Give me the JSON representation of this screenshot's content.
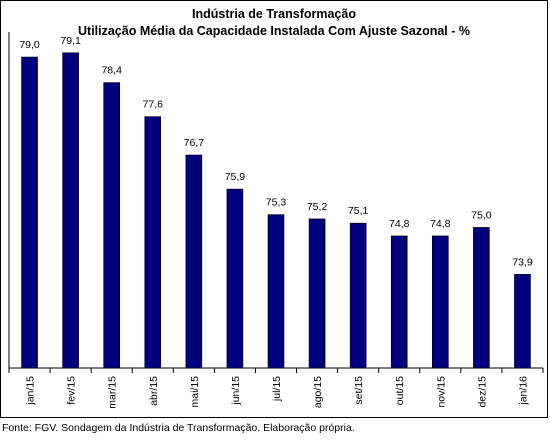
{
  "chart_data": {
    "type": "bar",
    "title": "Indústria de Transformação",
    "subtitle": "Utilização Média da Capacidade Instalada Com Ajuste Sazonal - %",
    "categories": [
      "jan/15",
      "fev/15",
      "mar/15",
      "abr/15",
      "mai/15",
      "jun/15",
      "jul/15",
      "ago/15",
      "set/15",
      "out/15",
      "nov/15",
      "dez/15",
      "jan/16"
    ],
    "values": [
      79.0,
      79.1,
      78.4,
      77.6,
      76.7,
      75.9,
      75.3,
      75.2,
      75.1,
      74.8,
      74.8,
      75.0,
      73.9
    ],
    "value_labels": [
      "79,0",
      "79,1",
      "78,4",
      "77,6",
      "76,7",
      "75,9",
      "75,3",
      "75,2",
      "75,1",
      "74,8",
      "74,8",
      "75,0",
      "73,9"
    ],
    "ylim": [
      71.7,
      79.4
    ],
    "grid": false,
    "bar_color": "#00007f",
    "xlabel": "",
    "ylabel": ""
  },
  "source_note": "Fonte: FGV. Sondagem da Indústria de Transformação. Elaboração própria."
}
